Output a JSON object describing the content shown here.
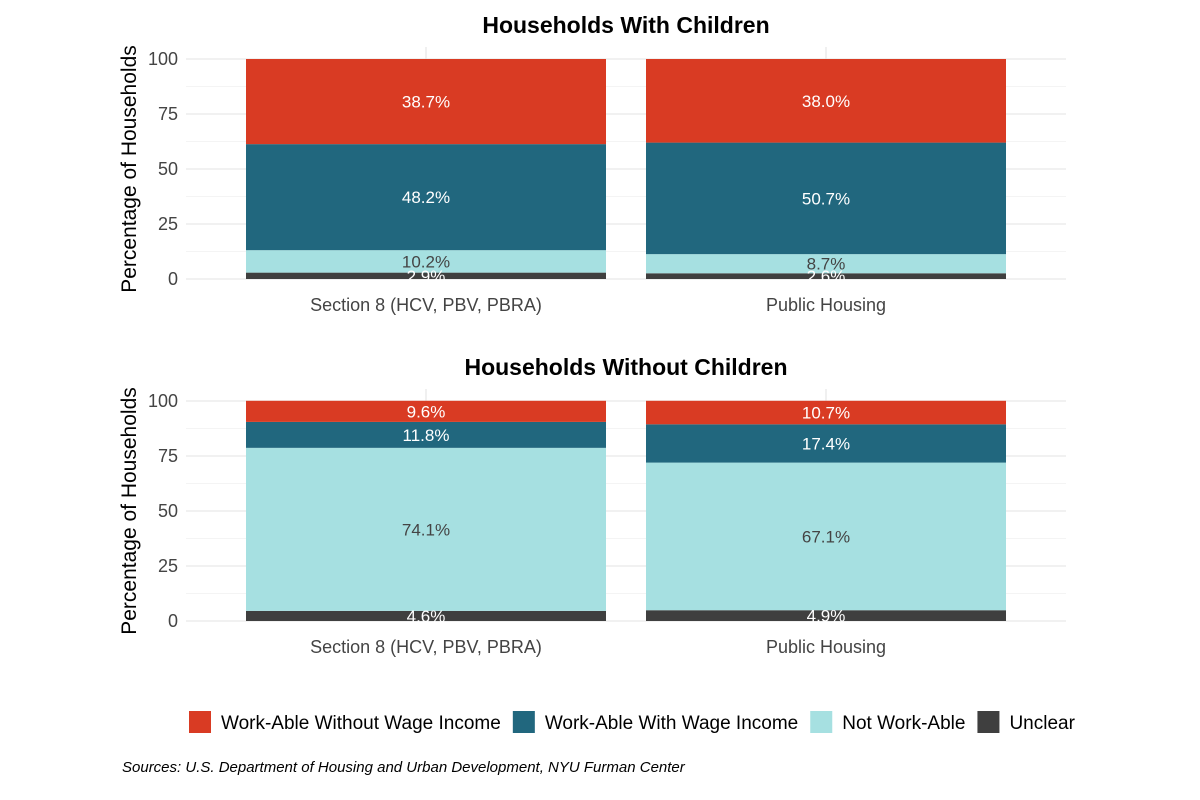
{
  "chart_data": [
    {
      "type": "bar",
      "stacked": true,
      "title": "Households With Children",
      "ylabel": "Percentage of Households",
      "xlabel": "",
      "ylim": [
        0,
        100
      ],
      "yticks": [
        "0",
        "25",
        "50",
        "75",
        "100"
      ],
      "categories": [
        "Section 8 (HCV, PBV, PBRA)",
        "Public Housing"
      ],
      "grid": true,
      "series": [
        {
          "name": "Unclear",
          "values": [
            2.9,
            2.6
          ],
          "labels": [
            "2.9%",
            "2.6%"
          ]
        },
        {
          "name": "Not Work-Able",
          "values": [
            10.2,
            8.7
          ],
          "labels": [
            "10.2%",
            "8.7%"
          ]
        },
        {
          "name": "Work-Able With Wage Income",
          "values": [
            48.2,
            50.7
          ],
          "labels": [
            "48.2%",
            "50.7%"
          ]
        },
        {
          "name": "Work-Able Without Wage Income",
          "values": [
            38.7,
            38.0
          ],
          "labels": [
            "38.7%",
            "38.0%"
          ]
        }
      ]
    },
    {
      "type": "bar",
      "stacked": true,
      "title": "Households Without Children",
      "ylabel": "Percentage of Households",
      "xlabel": "",
      "ylim": [
        0,
        100
      ],
      "yticks": [
        "0",
        "25",
        "50",
        "75",
        "100"
      ],
      "categories": [
        "Section 8 (HCV, PBV, PBRA)",
        "Public Housing"
      ],
      "grid": true,
      "series": [
        {
          "name": "Unclear",
          "values": [
            4.6,
            4.9
          ],
          "labels": [
            "4.6%",
            "4.9%"
          ]
        },
        {
          "name": "Not Work-Able",
          "values": [
            74.1,
            67.1
          ],
          "labels": [
            "74.1%",
            "67.1%"
          ]
        },
        {
          "name": "Work-Able With Wage Income",
          "values": [
            11.8,
            17.4
          ],
          "labels": [
            "11.8%",
            "17.4%"
          ]
        },
        {
          "name": "Work-Able Without Wage Income",
          "values": [
            9.6,
            10.7
          ],
          "labels": [
            "9.6%",
            "10.7%"
          ]
        }
      ]
    }
  ],
  "legend": {
    "position": "bottom",
    "items": [
      {
        "name": "Work-Able Without Wage Income",
        "color": "#d93b23"
      },
      {
        "name": "Work-Able With Wage Income",
        "color": "#21677e"
      },
      {
        "name": "Not Work-Able",
        "color": "#a6e0e1"
      },
      {
        "name": "Unclear",
        "color": "#3f3f3f"
      }
    ]
  },
  "colors": {
    "Work-Able Without Wage Income": "#d93b23",
    "Work-Able With Wage Income": "#21677e",
    "Not Work-Able": "#a6e0e1",
    "Unclear": "#3f3f3f"
  },
  "label_colors": {
    "Work-Able Without Wage Income": "#ffffff",
    "Work-Able With Wage Income": "#ffffff",
    "Not Work-Able": "#444444",
    "Unclear": "#ffffff"
  },
  "source": "Sources: U.S. Department of Housing and Urban Development, NYU Furman Center"
}
